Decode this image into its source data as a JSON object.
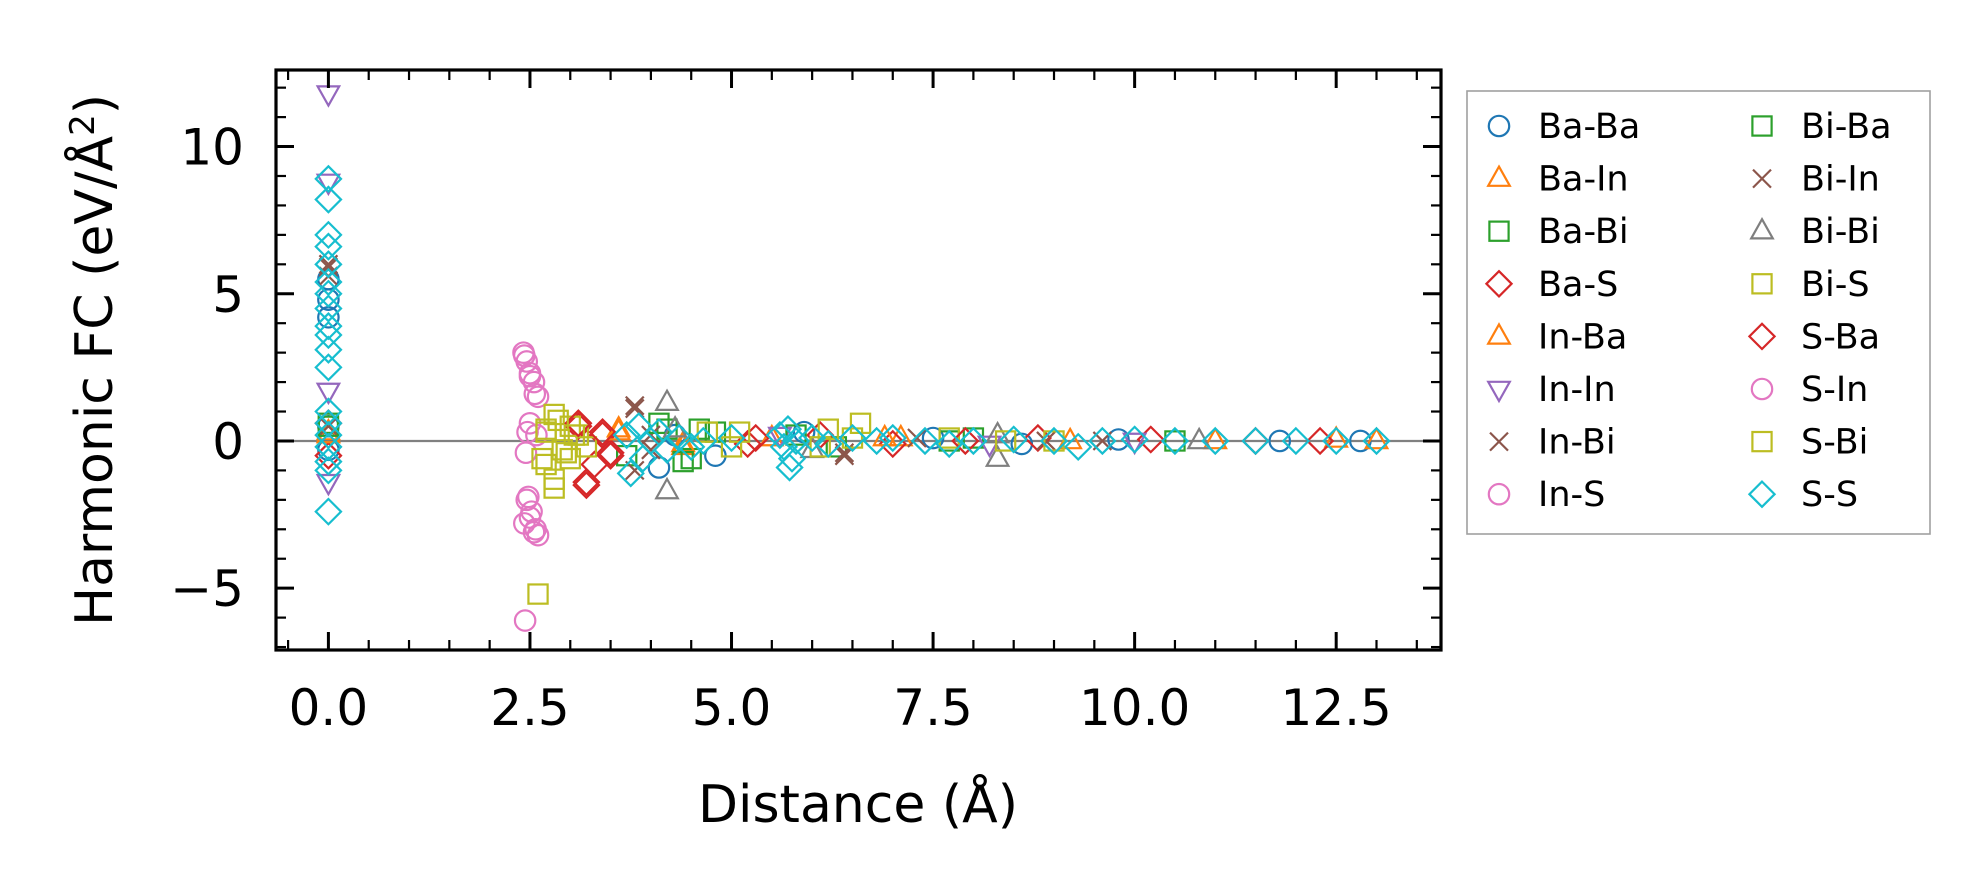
{
  "chart_data": {
    "type": "scatter",
    "title": "",
    "xlabel": "Distance (Å)",
    "ylabel": "Harmonic FC (eV/Å",
    "ylabel_superscript": "2",
    "ylabel_suffix": ")",
    "xlim": [
      -0.65,
      13.8
    ],
    "ylim": [
      -7.1,
      12.6
    ],
    "xticks": [
      0.0,
      2.5,
      5.0,
      7.5,
      10.0,
      12.5
    ],
    "xtick_labels": [
      "0.0",
      "2.5",
      "5.0",
      "7.5",
      "10.0",
      "12.5"
    ],
    "yticks": [
      -5,
      0,
      5,
      10
    ],
    "ytick_labels": [
      "−5",
      "0",
      "5",
      "10"
    ],
    "reference_line_y": 0,
    "legend_position": "outside-right",
    "series": [
      {
        "name": "Ba-Ba",
        "marker": "circle",
        "color": "#1f77b4",
        "points": [
          [
            0,
            4.8
          ],
          [
            0,
            5.5
          ],
          [
            0,
            4.2
          ],
          [
            0,
            -0.3
          ],
          [
            0,
            0.5
          ],
          [
            4.1,
            -0.9
          ],
          [
            4.3,
            0.2
          ],
          [
            4.8,
            -0.5
          ],
          [
            5.9,
            0.3
          ],
          [
            7.5,
            0.1
          ],
          [
            8.6,
            -0.1
          ],
          [
            9.8,
            0.05
          ],
          [
            11.8,
            0.0
          ],
          [
            12.8,
            0.0
          ]
        ]
      },
      {
        "name": "Ba-In",
        "marker": "triangle-up",
        "color": "#ff7f0e",
        "points": [
          [
            0,
            0.3
          ],
          [
            3.6,
            0.4
          ],
          [
            4.4,
            -0.2
          ],
          [
            5.5,
            0.1
          ],
          [
            7.1,
            0.1
          ],
          [
            9.2,
            0.0
          ],
          [
            12.5,
            0.05
          ]
        ]
      },
      {
        "name": "Ba-Bi",
        "marker": "square",
        "color": "#2ca02c",
        "points": [
          [
            0,
            0.6
          ],
          [
            3.7,
            -0.5
          ],
          [
            4.2,
            0.4
          ],
          [
            4.5,
            -0.6
          ],
          [
            4.8,
            0.3
          ],
          [
            6.3,
            -0.2
          ],
          [
            8.0,
            0.1
          ],
          [
            10.5,
            0.0
          ]
        ]
      },
      {
        "name": "Ba-S",
        "marker": "diamond",
        "color": "#d62728",
        "points": [
          [
            0,
            0.6
          ],
          [
            0,
            -0.5
          ],
          [
            3.1,
            0.5
          ],
          [
            3.2,
            -1.5
          ],
          [
            3.3,
            -0.8
          ],
          [
            3.4,
            0.2
          ],
          [
            3.5,
            -0.4
          ],
          [
            5.2,
            -0.1
          ],
          [
            6.1,
            0.2
          ],
          [
            7.0,
            -0.1
          ],
          [
            8.8,
            0.1
          ],
          [
            10.2,
            0.05
          ],
          [
            12.3,
            0.0
          ]
        ]
      },
      {
        "name": "In-Ba",
        "marker": "triangle-up",
        "color": "#ff7f0e",
        "points": [
          [
            0,
            0.2
          ],
          [
            3.6,
            0.3
          ],
          [
            4.4,
            -0.1
          ],
          [
            6.9,
            0.1
          ],
          [
            11.0,
            0.0
          ],
          [
            13.0,
            0.0
          ]
        ]
      },
      {
        "name": "In-In",
        "marker": "triangle-down",
        "color": "#9467bd",
        "points": [
          [
            0,
            11.8
          ],
          [
            0,
            8.8
          ],
          [
            0,
            1.7
          ],
          [
            0,
            -1.4
          ],
          [
            5.6,
            0.2
          ],
          [
            8.2,
            -0.1
          ],
          [
            10.0,
            0.0
          ]
        ]
      },
      {
        "name": "In-Bi",
        "marker": "x",
        "color": "#8c564b",
        "points": [
          [
            0,
            6.0
          ],
          [
            0,
            5.6
          ],
          [
            0,
            0.5
          ],
          [
            3.8,
            1.2
          ],
          [
            3.8,
            -1.0
          ],
          [
            4.0,
            0.2
          ],
          [
            6.4,
            -0.4
          ],
          [
            7.3,
            0.1
          ],
          [
            9.6,
            0.0
          ]
        ]
      },
      {
        "name": "In-S",
        "marker": "circle",
        "color": "#e377c2",
        "points": [
          [
            2.42,
            3.0
          ],
          [
            2.46,
            2.7
          ],
          [
            2.5,
            2.3
          ],
          [
            2.55,
            2.0
          ],
          [
            2.6,
            1.5
          ],
          [
            2.45,
            -0.4
          ],
          [
            2.5,
            0.6
          ],
          [
            2.48,
            -1.9
          ],
          [
            2.52,
            -2.4
          ],
          [
            2.43,
            -2.8
          ],
          [
            2.55,
            -3.1
          ],
          [
            2.6,
            -3.2
          ],
          [
            2.44,
            -6.1
          ],
          [
            2.58,
            0.2
          ]
        ]
      },
      {
        "name": "Bi-Ba",
        "marker": "square",
        "color": "#2ca02c",
        "points": [
          [
            0,
            0.5
          ],
          [
            4.1,
            0.6
          ],
          [
            4.4,
            -0.7
          ],
          [
            4.6,
            0.4
          ],
          [
            5.8,
            0.2
          ],
          [
            7.7,
            0.0
          ]
        ]
      },
      {
        "name": "Bi-In",
        "marker": "x",
        "color": "#8c564b",
        "points": [
          [
            0,
            5.9
          ],
          [
            3.8,
            1.1
          ],
          [
            4.0,
            -0.3
          ],
          [
            6.4,
            -0.5
          ],
          [
            8.9,
            0.0
          ]
        ]
      },
      {
        "name": "Bi-Bi",
        "marker": "triangle-up",
        "color": "#7f7f7f",
        "points": [
          [
            4.2,
            1.3
          ],
          [
            4.2,
            -1.7
          ],
          [
            4.3,
            0.4
          ],
          [
            6.0,
            -0.3
          ],
          [
            8.3,
            -0.6
          ],
          [
            8.3,
            0.2
          ],
          [
            10.8,
            0.0
          ]
        ]
      },
      {
        "name": "Bi-S",
        "marker": "square",
        "color": "#bcbd22",
        "points": [
          [
            2.6,
            -5.2
          ],
          [
            2.7,
            -0.8
          ],
          [
            2.7,
            0.3
          ],
          [
            2.8,
            0.9
          ],
          [
            2.8,
            -1.6
          ],
          [
            2.9,
            -0.3
          ],
          [
            3.0,
            0.5
          ],
          [
            3.0,
            -0.6
          ],
          [
            3.1,
            0.2
          ],
          [
            3.2,
            -0.2
          ],
          [
            4.7,
            0.3
          ],
          [
            5.0,
            -0.2
          ],
          [
            6.1,
            -0.2
          ],
          [
            6.6,
            0.6
          ],
          [
            7.7,
            0.1
          ],
          [
            9.0,
            0.0
          ]
        ]
      },
      {
        "name": "S-Ba",
        "marker": "diamond",
        "color": "#d62728",
        "points": [
          [
            3.1,
            0.6
          ],
          [
            3.2,
            -1.4
          ],
          [
            3.4,
            0.3
          ],
          [
            3.5,
            -0.5
          ],
          [
            5.3,
            0.1
          ],
          [
            7.9,
            0.0
          ],
          [
            11.5,
            0.0
          ]
        ]
      },
      {
        "name": "S-In",
        "marker": "circle",
        "color": "#e377c2",
        "points": [
          [
            2.43,
            2.9
          ],
          [
            2.5,
            2.2
          ],
          [
            2.56,
            1.6
          ],
          [
            2.46,
            -2.0
          ],
          [
            2.5,
            -2.6
          ],
          [
            2.57,
            -3.0
          ],
          [
            2.47,
            0.3
          ]
        ]
      },
      {
        "name": "S-Bi",
        "marker": "square",
        "color": "#bcbd22",
        "points": [
          [
            2.65,
            -0.6
          ],
          [
            2.7,
            0.4
          ],
          [
            2.8,
            -1.3
          ],
          [
            2.85,
            0.7
          ],
          [
            2.95,
            -0.4
          ],
          [
            3.05,
            0.2
          ],
          [
            5.1,
            0.3
          ],
          [
            6.2,
            0.4
          ],
          [
            6.5,
            0.1
          ],
          [
            8.4,
            0.0
          ]
        ]
      },
      {
        "name": "S-S",
        "marker": "diamond",
        "color": "#17becf",
        "points": [
          [
            0,
            8.9
          ],
          [
            0,
            8.2
          ],
          [
            0,
            7.0
          ],
          [
            0,
            6.6
          ],
          [
            0,
            6.0
          ],
          [
            0,
            5.4
          ],
          [
            0,
            5.0
          ],
          [
            0,
            4.5
          ],
          [
            0,
            3.9
          ],
          [
            0,
            3.6
          ],
          [
            0,
            3.1
          ],
          [
            0,
            2.5
          ],
          [
            0,
            1.0
          ],
          [
            0,
            0.6
          ],
          [
            0,
            0.2
          ],
          [
            0,
            -0.2
          ],
          [
            0,
            -0.7
          ],
          [
            0,
            -1.0
          ],
          [
            0,
            -2.4
          ],
          [
            3.7,
            0.2
          ],
          [
            3.75,
            -1.1
          ],
          [
            3.85,
            0.5
          ],
          [
            3.9,
            -0.6
          ],
          [
            4.0,
            0.0
          ],
          [
            4.1,
            0.3
          ],
          [
            4.2,
            -0.3
          ],
          [
            4.35,
            0.1
          ],
          [
            4.5,
            -0.2
          ],
          [
            4.65,
            0.0
          ],
          [
            5.0,
            0.1
          ],
          [
            5.6,
            0.2
          ],
          [
            5.65,
            -0.2
          ],
          [
            5.7,
            0.4
          ],
          [
            5.72,
            -0.9
          ],
          [
            5.75,
            -0.6
          ],
          [
            5.8,
            0.0
          ],
          [
            6.0,
            0.1
          ],
          [
            6.2,
            -0.1
          ],
          [
            6.5,
            0.1
          ],
          [
            6.8,
            0.0
          ],
          [
            7.0,
            0.1
          ],
          [
            7.4,
            0.0
          ],
          [
            7.7,
            -0.1
          ],
          [
            8.0,
            0.0
          ],
          [
            8.5,
            0.05
          ],
          [
            9.0,
            0.0
          ],
          [
            9.3,
            -0.2
          ],
          [
            9.6,
            0.0
          ],
          [
            10.0,
            0.05
          ],
          [
            10.5,
            0.0
          ],
          [
            11.0,
            0.0
          ],
          [
            11.5,
            0.0
          ],
          [
            12.0,
            0.0
          ],
          [
            12.5,
            0.0
          ],
          [
            13.0,
            0.0
          ]
        ]
      }
    ]
  }
}
